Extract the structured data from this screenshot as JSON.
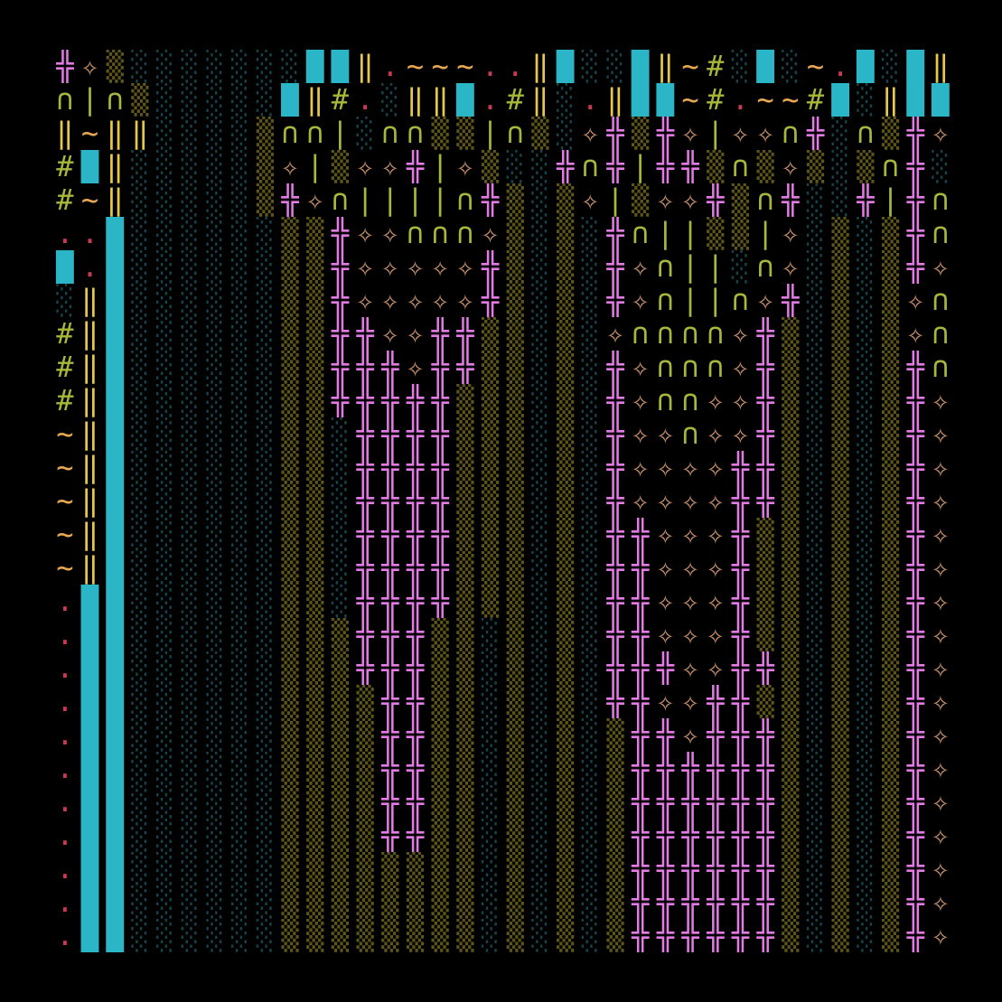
{
  "art": {
    "background": "#000000",
    "palette": {
      "░": "#17444c",
      "▒": "#5e5618",
      "█": "#2ab6c6",
      "╬": "#e47ae6",
      "✧": "#c8926c",
      "∩": "#a8b63a",
      "‖": "#e6c84a",
      "|": "#a8b63a",
      "#": "#a8b63a",
      "~": "#e8a852",
      ".": "#c83a52"
    },
    "rows": [
      "╬✧▒░░░░░░░██‖.~~~..‖█░░█‖~#░█░~.█░█‖",
      "∩|∩▒░░░░░█‖#.░‖‖█.#‖░.‖██~#.~~#█░‖██",
      "‖~‖‖░░░░▒∩∩|░∩∩▒▒|∩▒░✧╬▒╬✧|✧✧∩╬░∩▒╬✧",
      "#█‖░░░░░▒✧|▒✧✧╬|✧▒░░╬∩╬|╬╬▒∩▒✧▒░▒∩╬░",
      "#~‖░░░░░▒╬✧∩||||∩╬▒░▒✧|▒✧✧╬▒∩╬░░╬|╬∩",
      "..█░░░░░░▒▒╬✧✧∩∩∩✧▒░▒░╬∩||▒▒|✧░▒░▒╬∩",
      "█.█░░░░░░▒▒╬✧✧✧✧✧╬▒░▒░╬✧∩||░∩✧░▒░▒╬✧",
      "░‖█░░░░░░▒▒╬✧✧✧✧✧╬▒░▒░╬✧∩||∩✧╬░▒░▒✧∩",
      "#‖█░░░░░░▒▒╬╬✧✧╬╬▒▒░▒░✧∩∩∩∩✧╬▒░▒░▒✧∩",
      "#‖█░░░░░░▒▒╬╬╬✧╬╬▒▒░▒░╬✧∩∩∩✧╬▒░▒░▒╬∩",
      "#‖█░░░░░░▒▒╬╬╬╬╬▒▒▒░▒░╬✧∩∩✧✧╬▒░▒░▒╬✧",
      "~‖█░░░░░░▒▒░╬╬╬╬▒▒▒░▒░╬✧✧∩✧✧╬▒░▒░▒╬✧",
      "~‖█░░░░░░▒▒░╬╬╬╬▒▒▒░▒░╬✧✧✧✧╬╬▒░▒░▒╬✧",
      "~‖█░░░░░░▒▒░╬╬╬╬▒▒▒░▒░╬✧✧✧✧╬╬▒░▒░▒╬✧",
      "~‖█░░░░░░▒▒░╬╬╬╬▒▒▒░▒░╬╬✧✧✧╬▒▒░▒░▒╬✧",
      "~‖█░░░░░░▒▒░╬╬╬╬▒▒▒░▒░╬╬✧✧✧╬▒▒░▒░▒╬✧",
      ".██░░░░░░▒▒░╬╬╬╬▒▒▒░▒░╬╬✧✧✧╬▒▒░▒░▒╬✧",
      ".██░░░░░░▒▒▒╬╬╬▒▒░▒░▒░╬╬✧✧✧╬▒▒░▒░▒╬✧",
      ".██░░░░░░▒▒▒╬╬╬▒▒░▒░▒░╬╬╬✧✧╬╬▒░▒░▒╬✧",
      ".██░░░░░░▒▒▒▒╬╬▒▒░▒░▒░╬╬✧✧╬╬▒▒░▒░▒╬✧",
      ".██░░░░░░▒▒▒▒╬╬▒▒░▒░▒░▒╬╬✧╬╬╬▒░▒░▒╬✧",
      ".██░░░░░░▒▒▒▒╬╬▒▒░▒░▒░▒╬╬╬╬╬╬▒░▒░▒╬✧",
      ".██░░░░░░▒▒▒▒╬╬▒▒░▒░▒░▒╬╬╬╬╬╬▒░▒░▒╬✧",
      ".██░░░░░░▒▒▒▒╬╬▒▒░▒░▒░▒╬╬╬╬╬╬▒░▒░▒╬✧",
      ".██░░░░░░▒▒▒▒▒▒▒▒░▒░▒░▒╬╬╬╬╬╬▒░▒░▒╬✧",
      ".██░░░░░░▒▒▒▒▒▒▒▒░▒░▒░▒╬╬╬╬╬╬▒░▒░▒╬✧",
      ".██░░░░░░▒▒▒▒▒▒▒▒░▒░▒░▒╬╬╬╬╬╬▒░▒░▒╬✧"
    ]
  }
}
